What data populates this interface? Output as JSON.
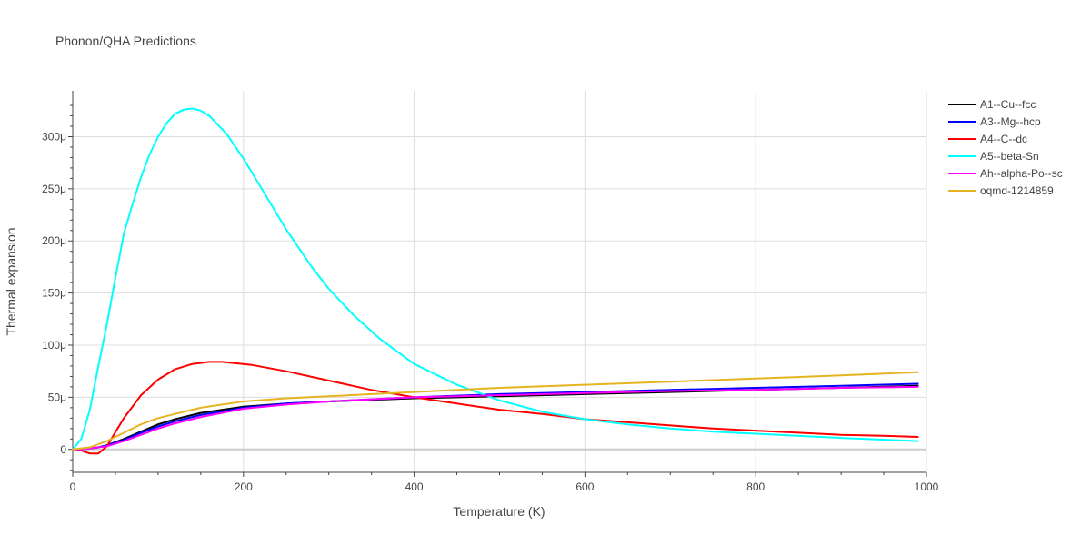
{
  "chart_data": {
    "type": "line",
    "title": "Phonon/QHA Predictions",
    "xlabel": "Temperature (K)",
    "ylabel": "Thermal expansion",
    "xlim": [
      0,
      1000
    ],
    "ylim": [
      -2.2e-05,
      0.000344
    ],
    "xticks": [
      0,
      200,
      400,
      600,
      800,
      1000
    ],
    "xtick_labels": [
      "0",
      "200",
      "400",
      "600",
      "800",
      "1000"
    ],
    "yticks": [
      0,
      5e-05,
      0.0001,
      0.00015,
      0.0002,
      0.00025,
      0.0003
    ],
    "ytick_labels": [
      "0",
      "50μ",
      "100μ",
      "150μ",
      "200μ",
      "250μ",
      "300μ"
    ],
    "grid": true,
    "legend_position": "top-right",
    "series": [
      {
        "name": "A1--Cu--fcc",
        "color": "#000000",
        "x": [
          0,
          10,
          20,
          30,
          40,
          60,
          80,
          100,
          120,
          150,
          200,
          250,
          300,
          400,
          500,
          600,
          700,
          800,
          900,
          990
        ],
        "y": [
          0,
          0,
          1e-06,
          2e-06,
          4e-06,
          1e-05,
          1.7e-05,
          2.4e-05,
          2.9e-05,
          3.5e-05,
          4.1e-05,
          4.4e-05,
          4.6e-05,
          4.9e-05,
          5.1e-05,
          5.3e-05,
          5.5e-05,
          5.7e-05,
          5.9e-05,
          6.1e-05
        ]
      },
      {
        "name": "A3--Mg--hcp",
        "color": "#0000ff",
        "x": [
          0,
          10,
          20,
          30,
          40,
          60,
          80,
          100,
          120,
          150,
          200,
          250,
          300,
          400,
          500,
          600,
          700,
          800,
          900,
          990
        ],
        "y": [
          0,
          0,
          1e-06,
          2e-06,
          4e-06,
          9e-06,
          1.6e-05,
          2.2e-05,
          2.7e-05,
          3.3e-05,
          4e-05,
          4.4e-05,
          4.6e-05,
          5e-05,
          5.3e-05,
          5.5e-05,
          5.7e-05,
          5.9e-05,
          6.1e-05,
          6.3e-05
        ]
      },
      {
        "name": "A4--C--dc",
        "color": "#ff0000",
        "x": [
          0,
          10,
          20,
          30,
          40,
          60,
          80,
          100,
          120,
          140,
          160,
          175,
          210,
          250,
          300,
          350,
          400,
          450,
          500,
          550,
          600,
          650,
          700,
          750,
          800,
          850,
          900,
          950,
          990
        ],
        "y": [
          0,
          -1e-06,
          -4e-06,
          -4e-06,
          3e-06,
          3e-05,
          5.2e-05,
          6.7e-05,
          7.7e-05,
          8.2e-05,
          8.4e-05,
          8.4e-05,
          8.1e-05,
          7.5e-05,
          6.6e-05,
          5.7e-05,
          5e-05,
          4.4e-05,
          3.8e-05,
          3.4e-05,
          2.9e-05,
          2.6e-05,
          2.3e-05,
          2e-05,
          1.8e-05,
          1.6e-05,
          1.4e-05,
          1.3e-05,
          1.2e-05
        ]
      },
      {
        "name": "A5--beta-Sn",
        "color": "#00ffff",
        "x": [
          0,
          10,
          20,
          30,
          40,
          50,
          60,
          70,
          80,
          90,
          100,
          110,
          120,
          130,
          140,
          150,
          160,
          180,
          200,
          220,
          250,
          280,
          300,
          330,
          360,
          400,
          450,
          500,
          550,
          600,
          650,
          700,
          750,
          800,
          900,
          990
        ],
        "y": [
          0,
          1e-05,
          3.8e-05,
          8e-05,
          0.00012,
          0.000165,
          0.000207,
          0.000235,
          0.000261,
          0.000283,
          0.0003,
          0.000313,
          0.000322,
          0.000326,
          0.000327,
          0.000325,
          0.00032,
          0.000303,
          0.000279,
          0.000252,
          0.000211,
          0.000175,
          0.000154,
          0.000128,
          0.000106,
          8.2e-05,
          6.2e-05,
          4.7e-05,
          3.6e-05,
          2.9e-05,
          2.4e-05,
          2e-05,
          1.7e-05,
          1.5e-05,
          1.1e-05,
          8e-06
        ]
      },
      {
        "name": "Ah--alpha-Po--sc",
        "color": "#ff00ff",
        "x": [
          0,
          10,
          20,
          30,
          40,
          60,
          80,
          100,
          120,
          150,
          200,
          250,
          300,
          400,
          500,
          600,
          700,
          800,
          900,
          990
        ],
        "y": [
          0,
          0,
          1e-06,
          2e-06,
          3e-06,
          8e-06,
          1.4e-05,
          2e-05,
          2.5e-05,
          3.1e-05,
          3.9e-05,
          4.3e-05,
          4.6e-05,
          5e-05,
          5.2e-05,
          5.4e-05,
          5.6e-05,
          5.7e-05,
          5.9e-05,
          6e-05
        ]
      },
      {
        "name": "oqmd-1214859",
        "color": "#e6b422",
        "x": [
          0,
          10,
          20,
          30,
          40,
          60,
          80,
          100,
          120,
          150,
          200,
          250,
          300,
          400,
          500,
          600,
          700,
          800,
          900,
          990
        ],
        "y": [
          0,
          1e-06,
          2e-06,
          5e-06,
          8e-06,
          1.6e-05,
          2.4e-05,
          3e-05,
          3.4e-05,
          4e-05,
          4.6e-05,
          4.9e-05,
          5.1e-05,
          5.5e-05,
          5.9e-05,
          6.2e-05,
          6.5e-05,
          6.8e-05,
          7.1e-05,
          7.4e-05
        ]
      }
    ]
  }
}
